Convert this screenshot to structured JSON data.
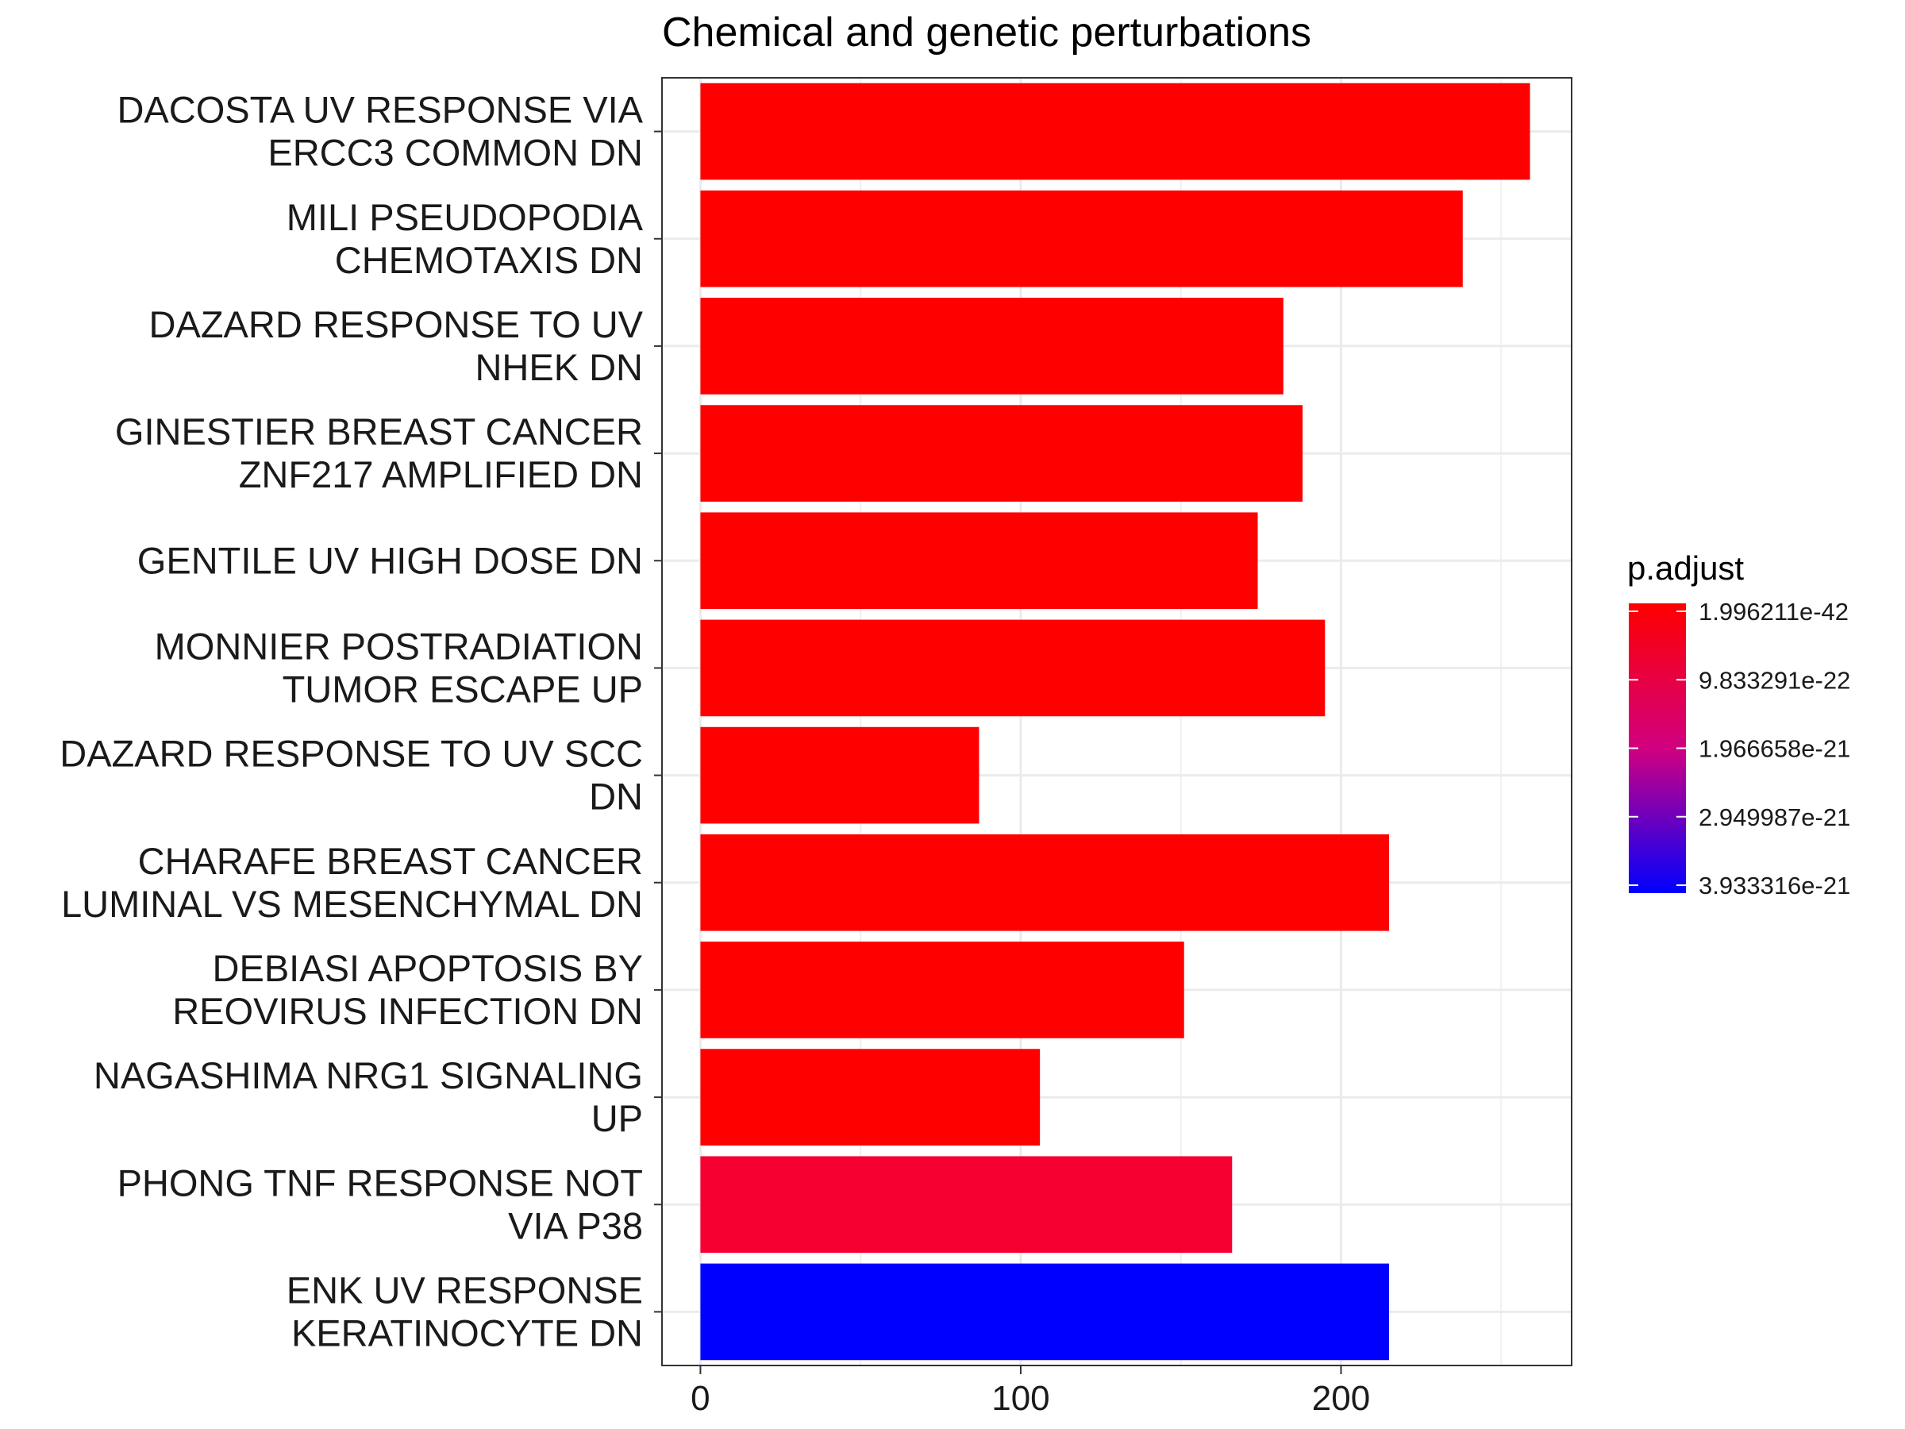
{
  "chart_data": {
    "type": "bar",
    "orientation": "horizontal",
    "title": "Chemical and genetic perturbations",
    "xlabel": "",
    "ylabel": "",
    "xlim": [
      -12,
      272
    ],
    "x_ticks": [
      0,
      100,
      200
    ],
    "x_tick_labels": [
      "0",
      "100",
      "200"
    ],
    "grid": true,
    "categories": [
      [
        "DACOSTA UV RESPONSE VIA",
        "ERCC3 COMMON DN"
      ],
      [
        "MILI PSEUDOPODIA",
        "CHEMOTAXIS DN"
      ],
      [
        "DAZARD RESPONSE TO UV",
        "NHEK DN"
      ],
      [
        "GINESTIER BREAST CANCER",
        "ZNF217 AMPLIFIED DN"
      ],
      [
        "GENTILE UV HIGH DOSE DN"
      ],
      [
        "MONNIER POSTRADIATION",
        "TUMOR ESCAPE UP"
      ],
      [
        "DAZARD RESPONSE TO UV SCC",
        "DN"
      ],
      [
        "CHARAFE BREAST CANCER",
        "LUMINAL VS MESENCHYMAL DN"
      ],
      [
        "DEBIASI APOPTOSIS BY",
        "REOVIRUS INFECTION DN"
      ],
      [
        "NAGASHIMA NRG1 SIGNALING",
        "UP"
      ],
      [
        "PHONG TNF RESPONSE NOT",
        "VIA P38"
      ],
      [
        "ENK UV RESPONSE",
        "KERATINOCYTE DN"
      ]
    ],
    "values": [
      259,
      238,
      182,
      188,
      174,
      195,
      87,
      215,
      151,
      106,
      166,
      215
    ],
    "bar_colors": [
      "#ff0000",
      "#ff0000",
      "#ff0000",
      "#ff0000",
      "#ff0000",
      "#ff0000",
      "#ff0000",
      "#ff0000",
      "#ff0000",
      "#ff0000",
      "#f50030",
      "#0000ff"
    ],
    "legend": {
      "title": "p.adjust",
      "position": "right",
      "color_low": "#ff0000",
      "color_high": "#0000ff",
      "labels": [
        "1.996211e-42",
        "9.833291e-22",
        "1.966658e-21",
        "2.949987e-21",
        "3.933316e-21"
      ]
    }
  }
}
